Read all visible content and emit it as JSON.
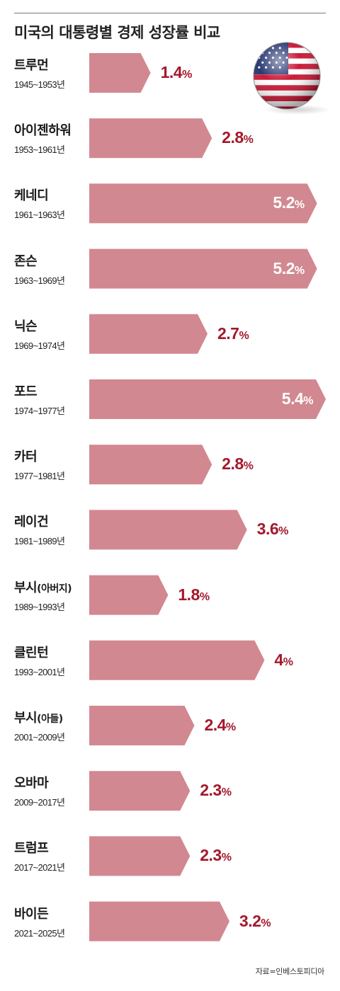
{
  "title": "미국의 대통령별 경제 성장률 비교",
  "source": "자료=인베스토피디아",
  "flag_icon": "us-flag-icon",
  "colors": {
    "bar": "#d28890",
    "value_text": "#a3192c",
    "value_text_inside": "#ffffff"
  },
  "chart_data": {
    "type": "bar",
    "orientation": "horizontal",
    "title": "미국의 대통령별 경제 성장률 비교",
    "unit": "%",
    "categories": [
      "트루먼",
      "아이젠하워",
      "케네디",
      "존슨",
      "닉슨",
      "포드",
      "카터",
      "레이건",
      "부시(아버지)",
      "클린턴",
      "부시(아들)",
      "오바마",
      "트럼프",
      "바이든"
    ],
    "periods": [
      "1945~1953년",
      "1953~1961년",
      "1961~1963년",
      "1963~1969년",
      "1969~1974년",
      "1974~1977년",
      "1977~1981년",
      "1981~1989년",
      "1989~1993년",
      "1993~2001년",
      "2001~2009년",
      "2009~2017년",
      "2017~2021년",
      "2021~2025년"
    ],
    "values": [
      1.4,
      2.8,
      5.2,
      5.2,
      2.7,
      5.4,
      2.8,
      3.6,
      1.8,
      4,
      2.4,
      2.3,
      2.3,
      3.2
    ],
    "value_labels": [
      "1.4",
      "2.8",
      "5.2",
      "5.2",
      "2.7",
      "5.4",
      "2.8",
      "3.6",
      "1.8",
      "4",
      "2.4",
      "2.3",
      "2.3",
      "3.2"
    ],
    "xlim": [
      0,
      5.4
    ],
    "grid": false,
    "legend": "none"
  }
}
